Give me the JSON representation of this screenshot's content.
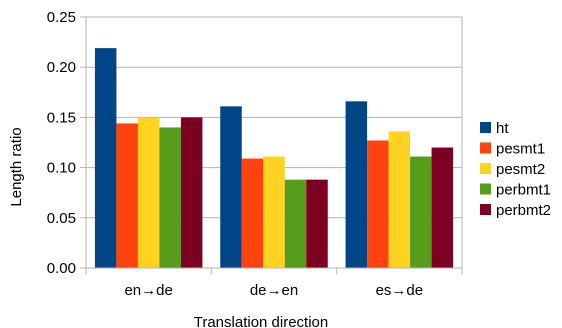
{
  "chart_data": {
    "type": "bar",
    "title": "",
    "xlabel": "Translation direction",
    "ylabel": "Length ratio",
    "categories": [
      "en→de",
      "de→en",
      "es→de"
    ],
    "series": [
      {
        "name": "ht",
        "color": "#004586",
        "values": [
          0.219,
          0.161,
          0.166
        ]
      },
      {
        "name": "pesmt1",
        "color": "#ff420e",
        "values": [
          0.144,
          0.109,
          0.127
        ]
      },
      {
        "name": "pesmt2",
        "color": "#ffd320",
        "values": [
          0.15,
          0.111,
          0.136
        ]
      },
      {
        "name": "perbmt1",
        "color": "#579d1c",
        "values": [
          0.14,
          0.088,
          0.111
        ]
      },
      {
        "name": "perbmt2",
        "color": "#7e0021",
        "values": [
          0.15,
          0.088,
          0.12
        ]
      }
    ],
    "yticks": [
      "0.00",
      "0.05",
      "0.10",
      "0.15",
      "0.20",
      "0.25"
    ],
    "ylim": [
      0,
      0.25
    ],
    "grid": true,
    "legend_position": "right"
  }
}
